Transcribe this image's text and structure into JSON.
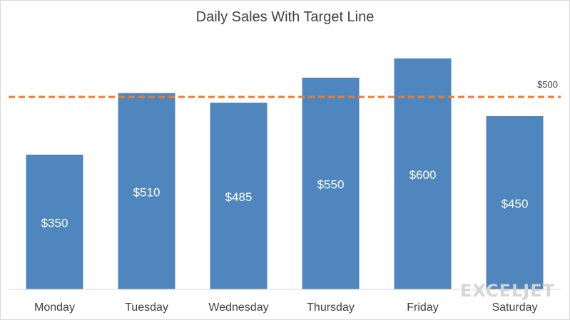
{
  "chart_data": {
    "type": "bar",
    "title": "Daily Sales With Target Line",
    "categories": [
      "Monday",
      "Tuesday",
      "Wednesday",
      "Thursday",
      "Friday",
      "Saturday"
    ],
    "values": [
      350,
      510,
      485,
      550,
      600,
      450
    ],
    "data_labels": [
      "$350",
      "$510",
      "$485",
      "$550",
      "$600",
      "$450"
    ],
    "target": {
      "value": 500,
      "label": "$500",
      "color": "#ED7D31",
      "style": "dashed"
    },
    "bar_color": "#4F86BE",
    "ylim": [
      0,
      700
    ],
    "grid": false,
    "legend": "none"
  },
  "watermark": "EXCELJET"
}
